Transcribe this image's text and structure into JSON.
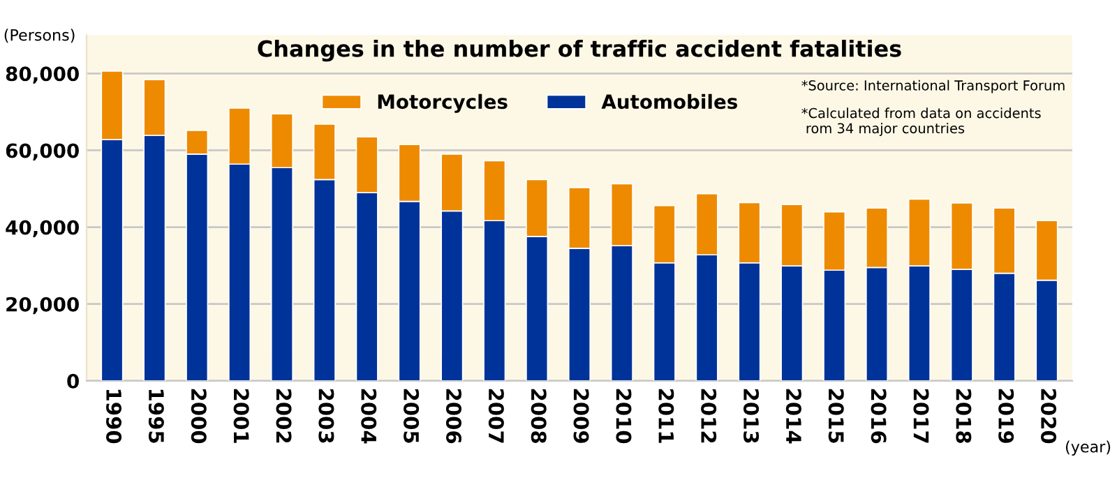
{
  "chart_data": {
    "type": "bar",
    "title": "Changes in the number of traffic accident fatalities",
    "ylabel": "(Persons)",
    "xlabel": "(year)",
    "categories": [
      "1990",
      "1995",
      "2000",
      "2001",
      "2002",
      "2003",
      "2004",
      "2005",
      "2006",
      "2007",
      "2008",
      "2009",
      "2010",
      "2011",
      "2012",
      "2013",
      "2014",
      "2015",
      "2016",
      "2017",
      "2018",
      "2019",
      "2020"
    ],
    "stacked": true,
    "series": [
      {
        "name": "Automobiles",
        "color": "#003399",
        "values": [
          62800,
          63900,
          59000,
          56400,
          55500,
          52400,
          49000,
          46700,
          44200,
          41700,
          37600,
          34500,
          35200,
          30700,
          32800,
          30700,
          29900,
          28800,
          29500,
          29900,
          29000,
          28000,
          26200
        ]
      },
      {
        "name": "Motorcycles",
        "color": "#ee8a00",
        "values": [
          17800,
          14500,
          6200,
          14600,
          14000,
          14400,
          14500,
          14800,
          14800,
          15600,
          14800,
          15800,
          16100,
          14900,
          15900,
          15700,
          16000,
          15200,
          15500,
          17400,
          17300,
          17000,
          15500
        ]
      }
    ],
    "ylim": [
      0,
      90000
    ],
    "yticks": [
      {
        "value": 0,
        "label": "0"
      },
      {
        "value": 20000,
        "label": "20,000"
      },
      {
        "value": 40000,
        "label": "40,000"
      },
      {
        "value": 60000,
        "label": "60,000"
      },
      {
        "value": 80000,
        "label": "80,000"
      }
    ],
    "grid": "y",
    "legend": "top",
    "annotations": [
      "*Source: International Transport Forum",
      "*Calculated from data on accidents\n rom 34 major countries"
    ]
  }
}
